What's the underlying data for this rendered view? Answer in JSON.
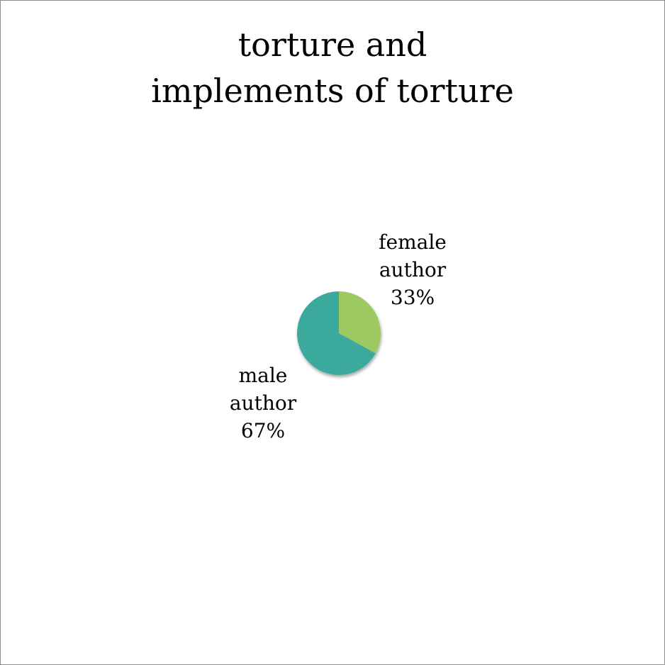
{
  "chart_data": {
    "type": "pie",
    "title_lines": [
      "torture and",
      "implements of torture"
    ],
    "slices": [
      {
        "label_lines": [
          "female",
          "author"
        ],
        "value": 33,
        "percent_label": "33%",
        "color": "#9dc964"
      },
      {
        "label_lines": [
          "male",
          "author"
        ],
        "value": 67,
        "percent_label": "67%",
        "color": "#3aaa9d"
      }
    ],
    "legend": "none",
    "grid": false
  }
}
